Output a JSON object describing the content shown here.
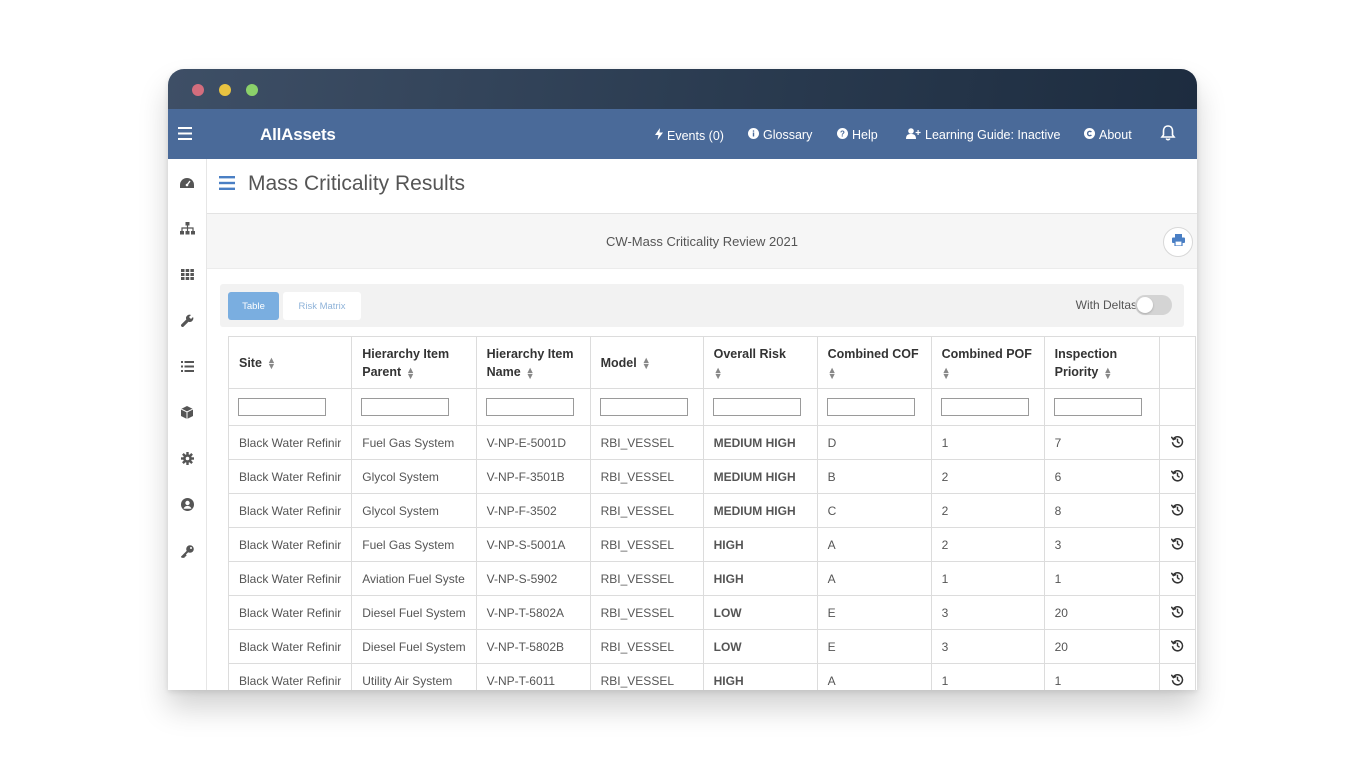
{
  "app": {
    "brand": "AllAssets"
  },
  "nav": {
    "events": "Events (0)",
    "glossary": "Glossary",
    "help": "Help",
    "learning_guide": "Learning Guide: Inactive",
    "about": "About"
  },
  "sidebar": {
    "items": [
      "dashboard-icon",
      "hierarchy-icon",
      "grid-icon",
      "wrench-icon",
      "list-icon",
      "cube-icon",
      "gear-icon",
      "user-icon",
      "key-icon"
    ]
  },
  "page": {
    "title": "Mass Criticality Results",
    "review_title": "CW-Mass Criticality Review 2021"
  },
  "toolbar": {
    "tabs": [
      "Table",
      "Risk Matrix"
    ],
    "active_tab": "Table",
    "with_deltas_label": "With Deltas",
    "with_deltas_on": false
  },
  "table": {
    "headers": [
      "Site",
      "Hierarchy Item Parent",
      "Hierarchy Item Name",
      "Model",
      "Overall Risk",
      "Combined COF",
      "Combined POF",
      "Inspection Priority"
    ],
    "rows": [
      {
        "site": "Black Water Refinir",
        "parent": "Fuel Gas System",
        "name": "V-NP-E-5001D",
        "model": "RBI_VESSEL",
        "risk": "MEDIUM HIGH",
        "cof": "D",
        "pof": "1",
        "priority": "7"
      },
      {
        "site": "Black Water Refinir",
        "parent": "Glycol System",
        "name": "V-NP-F-3501B",
        "model": "RBI_VESSEL",
        "risk": "MEDIUM HIGH",
        "cof": "B",
        "pof": "2",
        "priority": "6"
      },
      {
        "site": "Black Water Refinir",
        "parent": "Glycol System",
        "name": "V-NP-F-3502",
        "model": "RBI_VESSEL",
        "risk": "MEDIUM HIGH",
        "cof": "C",
        "pof": "2",
        "priority": "8"
      },
      {
        "site": "Black Water Refinir",
        "parent": "Fuel Gas System",
        "name": "V-NP-S-5001A",
        "model": "RBI_VESSEL",
        "risk": "HIGH",
        "cof": "A",
        "pof": "2",
        "priority": "3"
      },
      {
        "site": "Black Water Refinir",
        "parent": "Aviation Fuel Syste",
        "name": "V-NP-S-5902",
        "model": "RBI_VESSEL",
        "risk": "HIGH",
        "cof": "A",
        "pof": "1",
        "priority": "1"
      },
      {
        "site": "Black Water Refinir",
        "parent": "Diesel Fuel System",
        "name": "V-NP-T-5802A",
        "model": "RBI_VESSEL",
        "risk": "LOW",
        "cof": "E",
        "pof": "3",
        "priority": "20"
      },
      {
        "site": "Black Water Refinir",
        "parent": "Diesel Fuel System",
        "name": "V-NP-T-5802B",
        "model": "RBI_VESSEL",
        "risk": "LOW",
        "cof": "E",
        "pof": "3",
        "priority": "20"
      },
      {
        "site": "Black Water Refinir",
        "parent": "Utility Air System",
        "name": "V-NP-T-6011",
        "model": "RBI_VESSEL",
        "risk": "HIGH",
        "cof": "A",
        "pof": "1",
        "priority": "1"
      }
    ]
  },
  "colors": {
    "navbar": "#4a6a99",
    "accent": "#4a7fc4",
    "risk_medium_high": "#ea2cc6",
    "risk_high": "#e2121b",
    "risk_low": "#33b52b"
  }
}
